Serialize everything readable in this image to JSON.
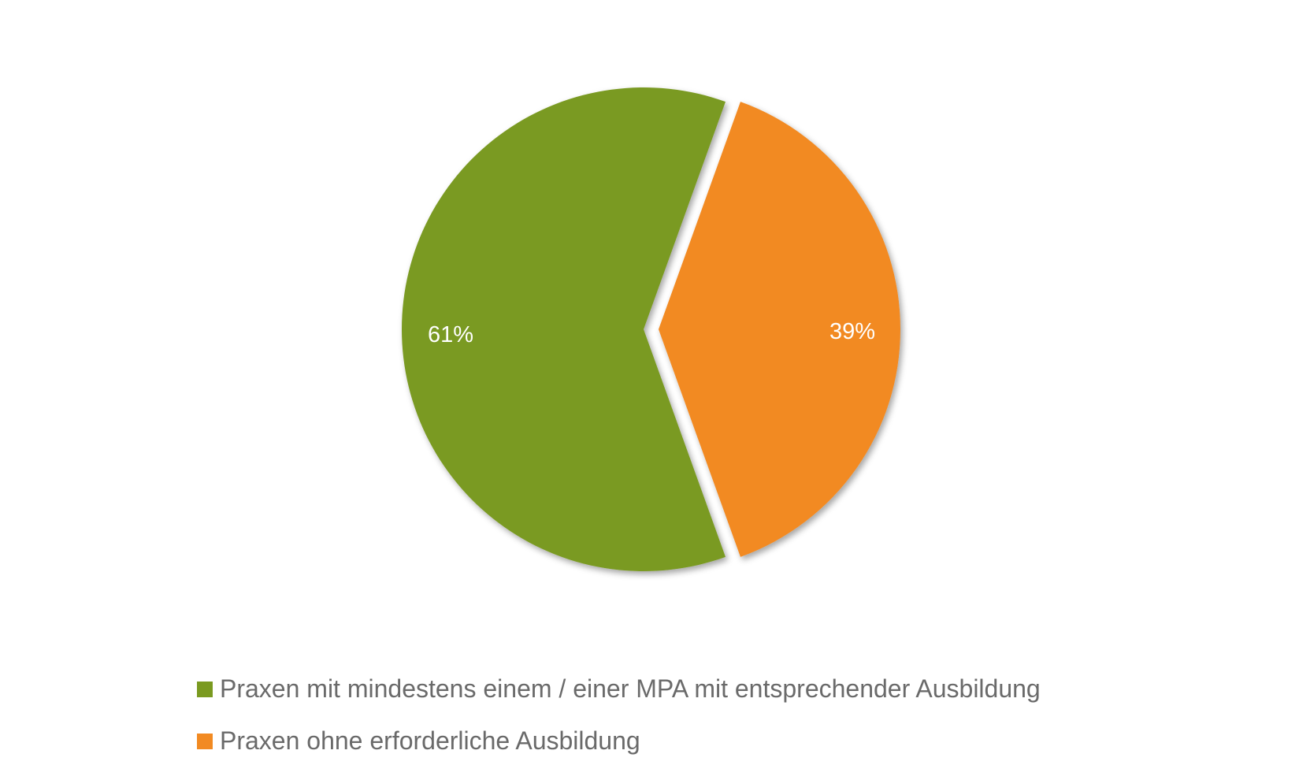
{
  "chart_data": {
    "type": "pie",
    "title": "",
    "slices": [
      {
        "name": "Praxen mit mindestens einem / einer MPA mit entsprechender Ausbildung",
        "value": 61,
        "label": "61%",
        "color": "#7a9a20"
      },
      {
        "name": "Praxen ohne erforderliche Ausbildung",
        "value": 39,
        "label": "39%",
        "color": "#f28a22"
      }
    ],
    "exploded": "Praxen ohne erforderliche Ausbildung",
    "legend_position": "bottom-left"
  }
}
